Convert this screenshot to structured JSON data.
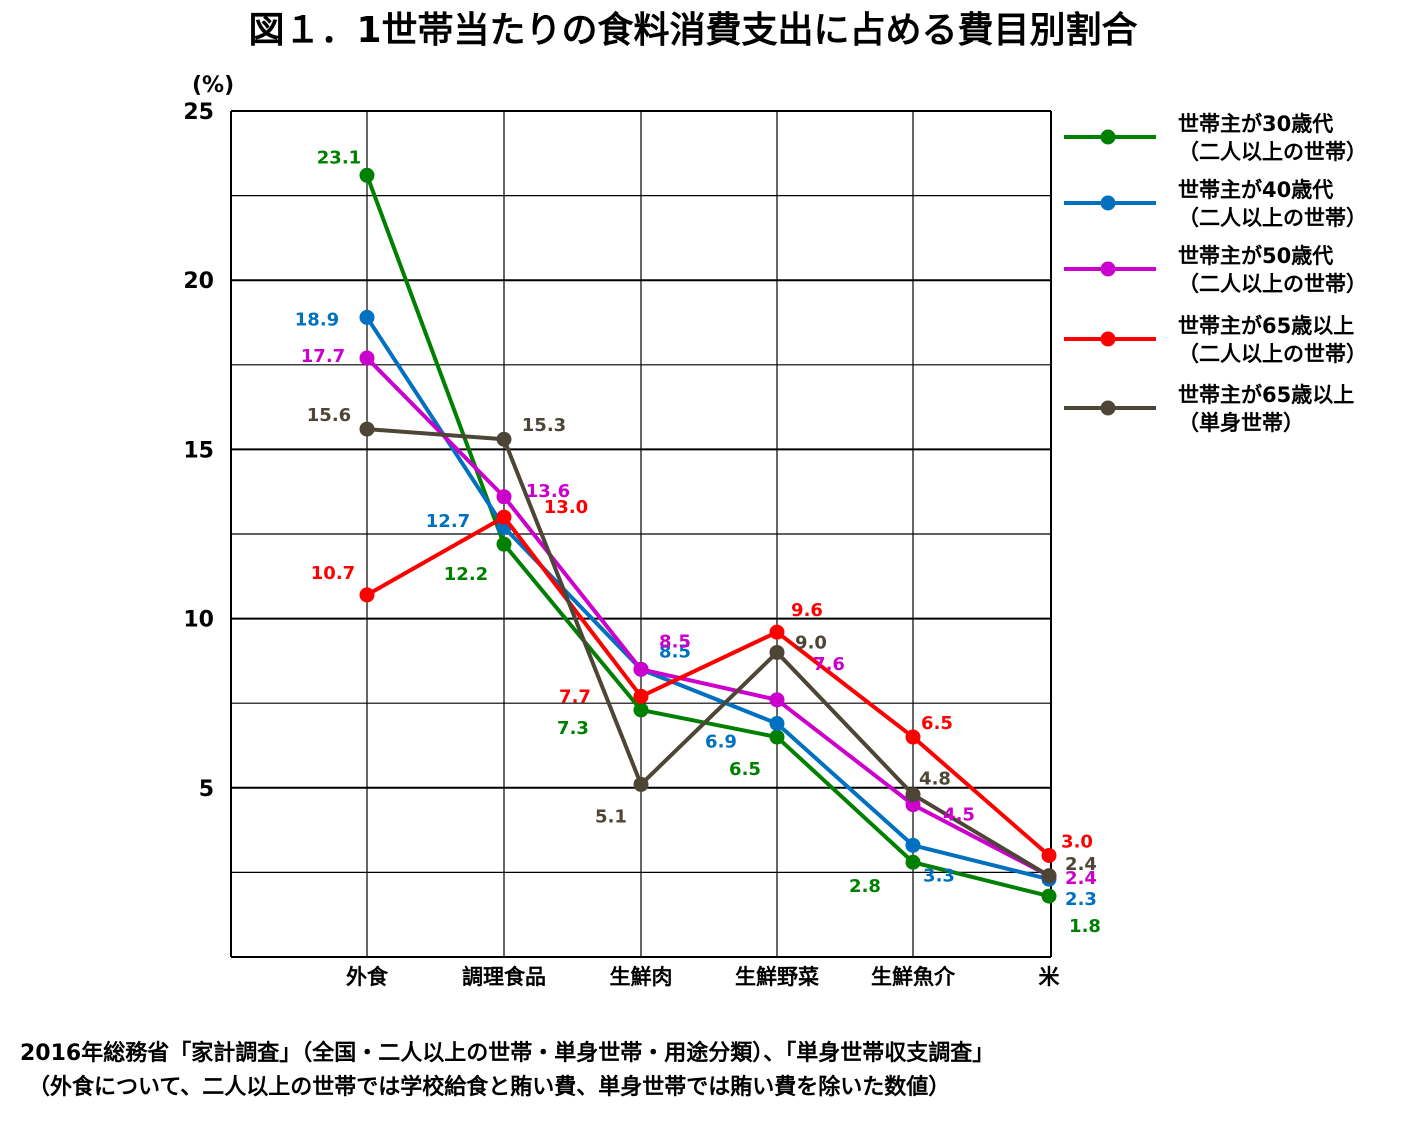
{
  "chart_data": {
    "type": "line",
    "title": "図１．1世帯当たりの食料消費支出に占める費目別割合",
    "ylabel": "(%)",
    "xlabel": "",
    "ylim": [
      0,
      25
    ],
    "ytick_labels": [
      "5",
      "10",
      "15",
      "20",
      "25"
    ],
    "grid": true,
    "legend_position": "right",
    "categories": [
      "外食",
      "調理食品",
      "生鮮肉",
      "生鮮野菜",
      "生鮮魚介",
      "米"
    ],
    "series": [
      {
        "name": "世帯主が30歳代",
        "name2": "（二人以上の世帯）",
        "color": "#008000",
        "values": [
          23.1,
          12.2,
          7.3,
          6.5,
          2.8,
          1.8
        ]
      },
      {
        "name": "世帯主が40歳代",
        "name2": "（二人以上の世帯）",
        "color": "#0070C0",
        "values": [
          18.9,
          12.7,
          8.5,
          6.9,
          3.3,
          2.3
        ]
      },
      {
        "name": "世帯主が50歳代",
        "name2": "（二人以上の世帯）",
        "color": "#CC00CC",
        "values": [
          17.7,
          13.6,
          8.5,
          7.6,
          4.5,
          2.4
        ]
      },
      {
        "name": "世帯主が65歳以上",
        "name2": "（二人以上の世帯）",
        "color": "#FF0000",
        "values": [
          10.7,
          13.0,
          7.7,
          9.6,
          6.5,
          3.0
        ]
      },
      {
        "name": "世帯主が65歳以上",
        "name2": "（単身世帯）",
        "color": "#4D4636",
        "values": [
          15.6,
          15.3,
          5.1,
          9.0,
          4.8,
          2.4
        ]
      }
    ]
  },
  "source_line1": "2016年総務省「家計調査」（全国・二人以上の世帯・単身世帯・用途分類）、「単身世帯収支調査」",
  "source_line2": "（外食について、二人以上の世帯では学校給食と賄い費、単身世帯では賄い費を除いた数値）"
}
